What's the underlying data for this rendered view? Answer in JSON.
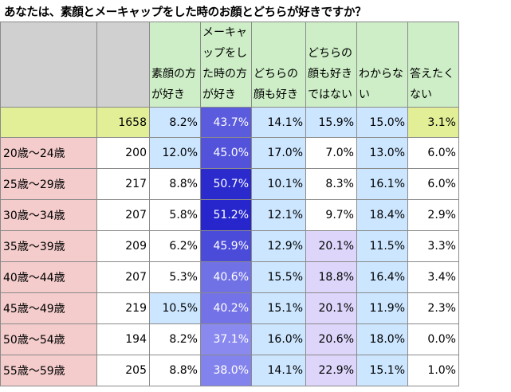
{
  "title": "あなたは、素顔とメーキャップをした時のお顔とどちらが好きですか？",
  "colors": {
    "header_green": "#cdeec6",
    "gray": "#d0d0d0",
    "total_row": "#e2ef97",
    "age_label_bg": "#f4cccc",
    "highlight_blue_light": "#cce6ff",
    "highlight_lavender": "#ddd6fa",
    "makeup_scale_low": "#8a8aef",
    "makeup_scale_high": "#2626cc"
  },
  "chart_data": {
    "type": "table",
    "title": "あなたは、素顔とメーキャップをした時のお顔とどちらが好きですか？",
    "columns": [
      "",
      "",
      "素顔の方が好き",
      "メーキャップをした時の方が好き",
      "どちらの顔も好き",
      "どちらの顔も好きではない",
      "わからない",
      "答えたくない"
    ],
    "rows": [
      {
        "label": "",
        "n": "1658",
        "values": [
          "8.2%",
          "43.7%",
          "14.1%",
          "15.9%",
          "15.0%",
          "3.1%"
        ]
      },
      {
        "label": "20歳～24歳",
        "n": "200",
        "values": [
          "12.0%",
          "45.0%",
          "17.0%",
          "7.0%",
          "13.0%",
          "6.0%"
        ]
      },
      {
        "label": "25歳～29歳",
        "n": "217",
        "values": [
          "8.8%",
          "50.7%",
          "10.1%",
          "8.3%",
          "16.1%",
          "6.0%"
        ]
      },
      {
        "label": "30歳～34歳",
        "n": "207",
        "values": [
          "5.8%",
          "51.2%",
          "12.1%",
          "9.7%",
          "18.4%",
          "2.9%"
        ]
      },
      {
        "label": "35歳～39歳",
        "n": "209",
        "values": [
          "6.2%",
          "45.9%",
          "12.9%",
          "20.1%",
          "11.5%",
          "3.3%"
        ]
      },
      {
        "label": "40歳～44歳",
        "n": "207",
        "values": [
          "5.3%",
          "40.6%",
          "15.5%",
          "18.8%",
          "16.4%",
          "3.4%"
        ]
      },
      {
        "label": "45歳～49歳",
        "n": "219",
        "values": [
          "10.5%",
          "40.2%",
          "15.1%",
          "20.1%",
          "11.9%",
          "2.3%"
        ]
      },
      {
        "label": "50歳～54歳",
        "n": "194",
        "values": [
          "8.2%",
          "37.1%",
          "16.0%",
          "20.6%",
          "18.0%",
          "0.0%"
        ]
      },
      {
        "label": "55歳～59歳",
        "n": "205",
        "values": [
          "8.8%",
          "38.0%",
          "14.1%",
          "22.9%",
          "15.1%",
          "1.0%"
        ]
      }
    ]
  }
}
